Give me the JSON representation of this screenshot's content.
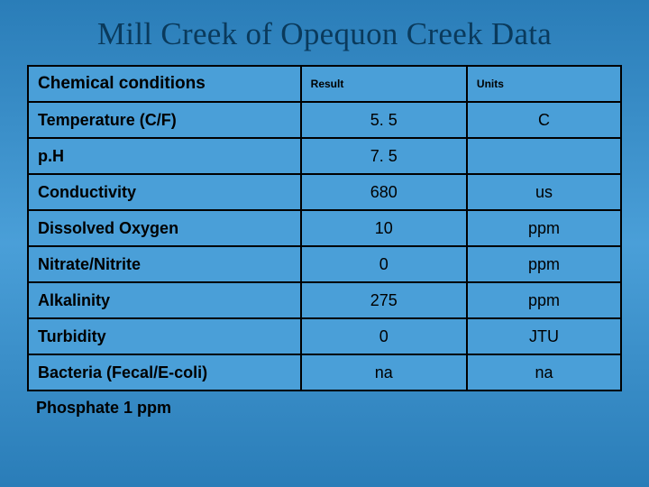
{
  "slide": {
    "title": "Mill Creek of Opequon Creek Data",
    "background_gradient": [
      "#2a7db8",
      "#4a9fd8",
      "#2a7db8"
    ],
    "title_color": "#0a3a5c",
    "title_fontsize_pt": 28,
    "title_font_family": "Times New Roman"
  },
  "table": {
    "type": "table",
    "border_color": "#000000",
    "header_bg": "transparent",
    "cell_fontsize_pt": 14,
    "header_param_fontsize_pt": 15,
    "header_small_fontsize_pt": 9,
    "column_widths_pct": [
      46,
      28,
      26
    ],
    "columns": {
      "param": "Chemical conditions",
      "result": "Result",
      "units": "Units"
    },
    "rows": [
      {
        "param": "Temperature (C/F)",
        "result": "5. 5",
        "units": "C"
      },
      {
        "param": "p.H",
        "result": "7. 5",
        "units": ""
      },
      {
        "param": "Conductivity",
        "result": "680",
        "units": "us"
      },
      {
        "param": "Dissolved Oxygen",
        "result": "10",
        "units": "ppm"
      },
      {
        "param": "Nitrate/Nitrite",
        "result": "0",
        "units": "ppm"
      },
      {
        "param": "Alkalinity",
        "result": "275",
        "units": "ppm"
      },
      {
        "param": "Turbidity",
        "result": "0",
        "units": "JTU"
      },
      {
        "param": "Bacteria (Fecal/E-coli)",
        "result": "na",
        "units": "na"
      }
    ]
  },
  "footnote": "Phosphate 1 ppm"
}
